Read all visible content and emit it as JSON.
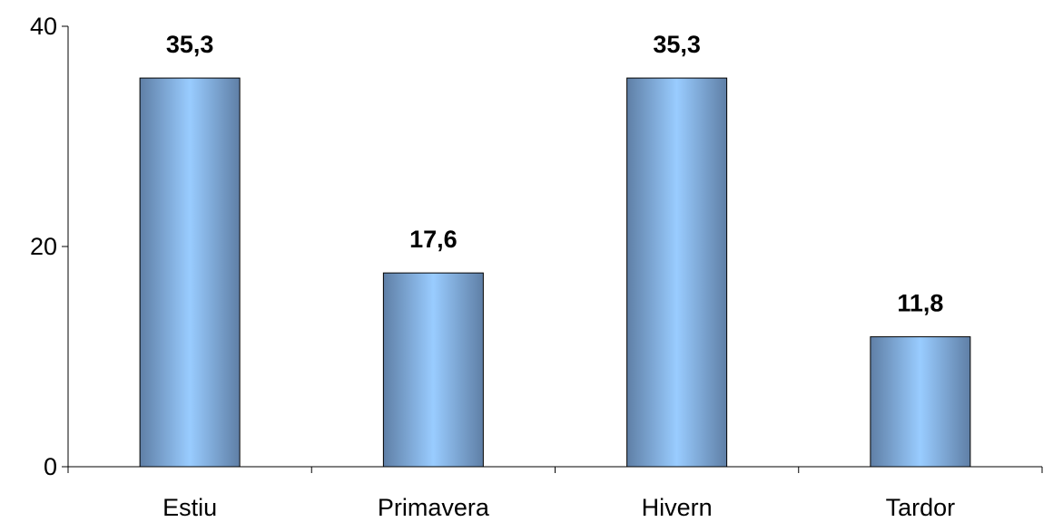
{
  "chart_data": {
    "type": "bar",
    "categories": [
      "Estiu",
      "Primavera",
      "Hivern",
      "Tardor"
    ],
    "values": [
      35.3,
      17.6,
      35.3,
      11.8
    ],
    "data_labels": [
      "35,3",
      "17,6",
      "35,3",
      "11,8"
    ],
    "ylim": [
      0,
      40
    ],
    "yticks": [
      0,
      20,
      40
    ],
    "ytick_labels": [
      "0",
      "20",
      "40"
    ],
    "grid": false,
    "legend": "none",
    "colors": {
      "bar_edge": "#5f7fa6",
      "bar_center": "#99ccff",
      "bar_outline": "#000000",
      "axis": "#000000"
    }
  }
}
